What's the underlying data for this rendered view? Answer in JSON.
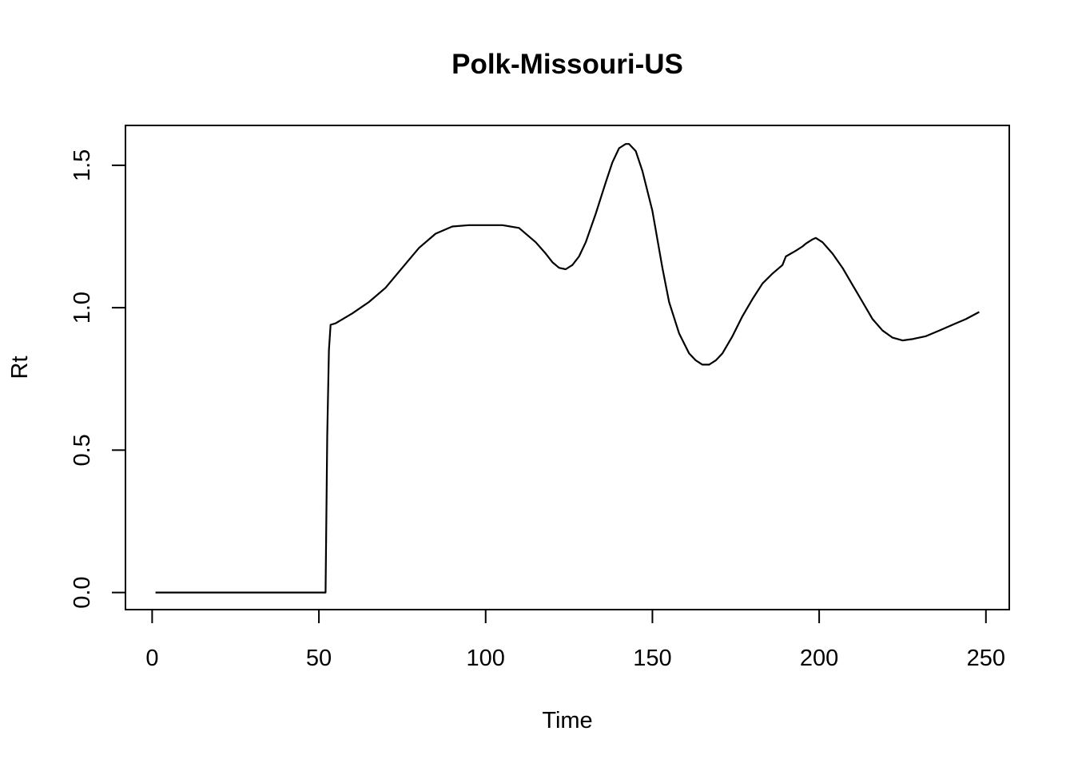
{
  "chart_data": {
    "type": "line",
    "title": "Polk-Missouri-US",
    "xlabel": "Time",
    "ylabel": "Rt",
    "xlim": [
      -8,
      257
    ],
    "ylim": [
      -0.06,
      1.64
    ],
    "grid": false,
    "x_ticks": [
      0,
      50,
      100,
      150,
      200,
      250
    ],
    "y_ticks": [
      0.0,
      0.5,
      1.0,
      1.5
    ],
    "x_tick_labels": [
      "0",
      "50",
      "100",
      "150",
      "200",
      "250"
    ],
    "y_tick_labels": [
      "0.0",
      "0.5",
      "1.0",
      "1.5"
    ],
    "series": [
      {
        "x": [
          1,
          10,
          20,
          30,
          40,
          50,
          52,
          52.5,
          53,
          53.5,
          55,
          60,
          65,
          70,
          75,
          80,
          85,
          90,
          95,
          100,
          105,
          110,
          115,
          118,
          120,
          122,
          124,
          126,
          128,
          130,
          133,
          136,
          138,
          140,
          142,
          143,
          145,
          147,
          150,
          153,
          155,
          158,
          161,
          163,
          165,
          167,
          169,
          171,
          174,
          177,
          180,
          183,
          186,
          189,
          190,
          193,
          195,
          196,
          198,
          199,
          201,
          204,
          207,
          210,
          213,
          216,
          219,
          222,
          225,
          228,
          232,
          236,
          240,
          244,
          248
        ],
        "y": [
          0.0,
          0.0,
          0.0,
          0.0,
          0.0,
          0.0,
          0.0,
          0.55,
          0.85,
          0.94,
          0.945,
          0.98,
          1.02,
          1.07,
          1.14,
          1.21,
          1.26,
          1.285,
          1.29,
          1.29,
          1.29,
          1.28,
          1.23,
          1.19,
          1.16,
          1.14,
          1.135,
          1.15,
          1.18,
          1.23,
          1.33,
          1.44,
          1.51,
          1.56,
          1.575,
          1.575,
          1.55,
          1.48,
          1.34,
          1.14,
          1.02,
          0.91,
          0.84,
          0.815,
          0.8,
          0.8,
          0.815,
          0.84,
          0.9,
          0.97,
          1.03,
          1.085,
          1.12,
          1.15,
          1.18,
          1.2,
          1.215,
          1.225,
          1.24,
          1.245,
          1.23,
          1.19,
          1.14,
          1.08,
          1.02,
          0.96,
          0.92,
          0.895,
          0.885,
          0.89,
          0.9,
          0.92,
          0.94,
          0.96,
          0.985
        ]
      }
    ]
  }
}
